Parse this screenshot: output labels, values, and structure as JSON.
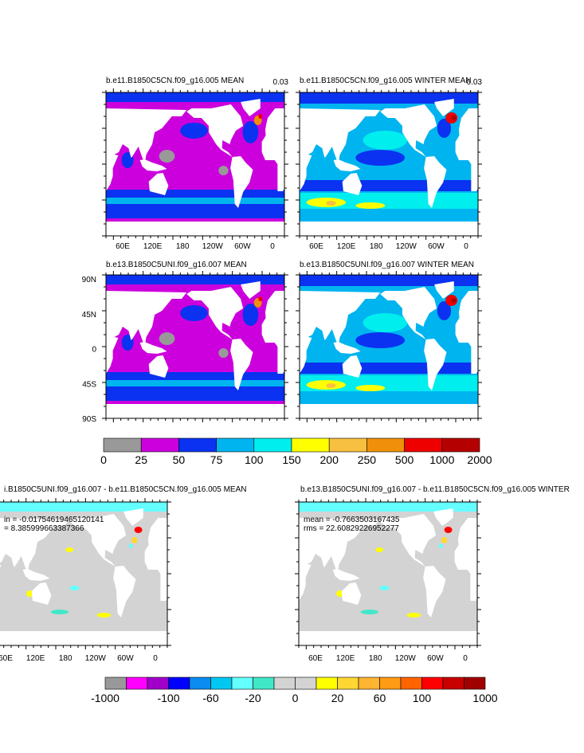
{
  "panels": [
    {
      "title": "b.e11.B1850C5CN.f09_g16.005 MEAN",
      "corner_label": "0.03"
    },
    {
      "title": "b.e11.B1850C5CN.f09_g16.005 WINTER MEAN",
      "corner_label": "0.03"
    },
    {
      "title": "b.e13.B1850C5UNI.f09_g16.007 MEAN"
    },
    {
      "title": "b.e13.B1850C5UNI.f09_g16.007 WINTER MEAN"
    },
    {
      "title": "i.B1850C5UNI.f09_g16.007 - b.e11.B1850C5CN.f09_g16.005 MEAN",
      "stats": [
        "in = -0.01754619465120141",
        "= 8.385999663387366"
      ]
    },
    {
      "title": "b.e13.B1850C5UNI.f09_g16.007 - b.e11.B1850C5CN.f09_g16.005 WINTER",
      "stats": [
        "mean = -0.7663503167435",
        "rms = 22.60829226952277"
      ]
    }
  ],
  "lon_labels": [
    "60E",
    "120E",
    "180",
    "120W",
    "60W",
    "0"
  ],
  "lat_labels": [
    "90N",
    "45N",
    "0",
    "45S",
    "90S"
  ],
  "colorbar_top": {
    "colors": [
      "#999999",
      "#cc00dd",
      "#0a32f0",
      "#00b4f0",
      "#00eeee",
      "#ffff00",
      "#f8c040",
      "#f0900a",
      "#ee0000",
      "#b40000"
    ],
    "labels": [
      "0",
      "25",
      "50",
      "75",
      "100",
      "150",
      "200",
      "250",
      "500",
      "1000",
      "2000"
    ]
  },
  "colorbar_bottom": {
    "colors": [
      "#999999",
      "#ff00ff",
      "#a000c8",
      "#0000ff",
      "#0a8cf0",
      "#00c8f0",
      "#64ffff",
      "#40e8c8",
      "#d3d3d3",
      "#d3d3d3",
      "#ffff00",
      "#ffd732",
      "#ffb432",
      "#ff9b14",
      "#ff6400",
      "#ff0000",
      "#c80000",
      "#a00000"
    ],
    "labels": [
      "-1000",
      null,
      null,
      "-100",
      null,
      "-60",
      null,
      "-20",
      null,
      "0",
      null,
      "20",
      null,
      "60",
      null,
      "100",
      null,
      null,
      "1000"
    ]
  }
}
